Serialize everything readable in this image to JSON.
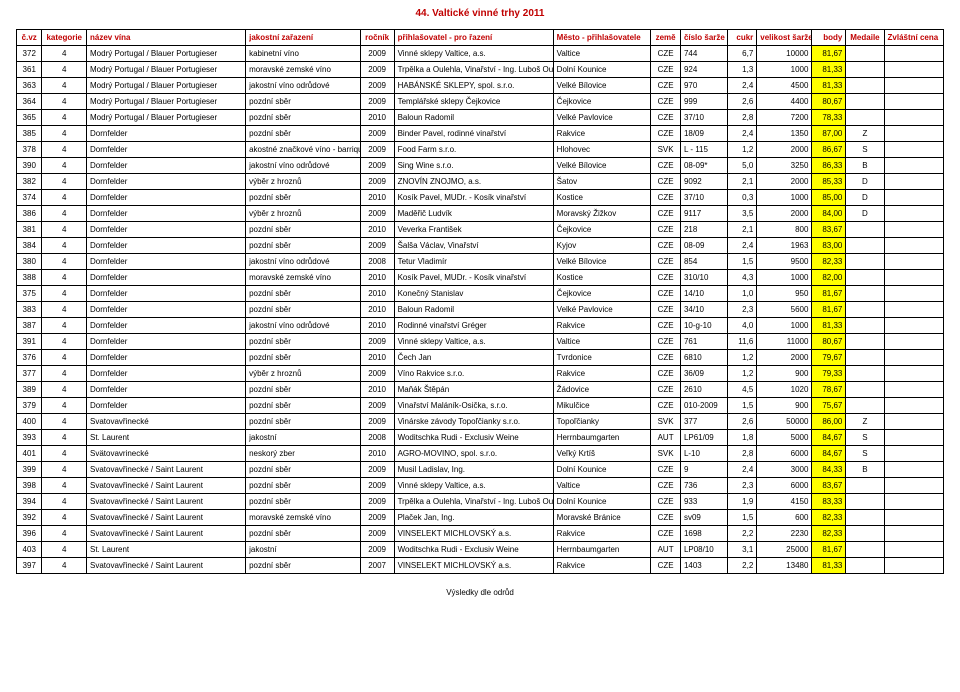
{
  "title": "44. Valtické vinné trhy 2011",
  "footer": "Výsledky dle odrůd",
  "columns": [
    {
      "key": "cvz",
      "label": "č.vz",
      "cls": "col-cvz"
    },
    {
      "key": "kat",
      "label": "kategorie",
      "cls": "col-kat"
    },
    {
      "key": "nazev",
      "label": "název vína",
      "cls": "col-nazev"
    },
    {
      "key": "jak",
      "label": "jakostní zařazení",
      "cls": "col-jak"
    },
    {
      "key": "roc",
      "label": "ročník",
      "cls": "col-roc"
    },
    {
      "key": "prihl",
      "label": "přihlašovatel - pro řazení",
      "cls": "col-prihl"
    },
    {
      "key": "mesto",
      "label": "Město - přihlašovatele",
      "cls": "col-mesto"
    },
    {
      "key": "zeme",
      "label": "země",
      "cls": "col-zeme"
    },
    {
      "key": "sarze",
      "label": "číslo šarže",
      "cls": "col-sarze"
    },
    {
      "key": "cukr",
      "label": "cukr",
      "cls": "col-cukr"
    },
    {
      "key": "vel",
      "label": "velikost šarže",
      "cls": "col-vel"
    },
    {
      "key": "body",
      "label": "body",
      "cls": "col-body"
    },
    {
      "key": "med",
      "label": "Medaile",
      "cls": "col-med"
    },
    {
      "key": "zvl",
      "label": "Zvláštní cena",
      "cls": "col-zvl"
    }
  ],
  "colors": {
    "header_text": "#c00000",
    "border": "#000000",
    "body_hl": "#ffff00",
    "body_normal": "#ffffff"
  },
  "rows": [
    {
      "cvz": "372",
      "kat": "4",
      "nazev": "Modrý Portugal / Blauer Portugieser",
      "jak": "kabinetní víno",
      "roc": "2009",
      "prihl": "Vinné sklepy Valtice, a.s.",
      "mesto": "Valtice",
      "zeme": "CZE",
      "sarze": "744",
      "cukr": "6,7",
      "vel": "10000",
      "body": "81,67",
      "med": "",
      "zvl": ""
    },
    {
      "cvz": "361",
      "kat": "4",
      "nazev": "Modrý Portugal / Blauer Portugieser",
      "jak": "moravské zemské víno",
      "roc": "2009",
      "prihl": "Trpělka a Oulehla, Vinařství - Ing. Luboš Oulehla",
      "mesto": "Dolní Kounice",
      "zeme": "CZE",
      "sarze": "924",
      "cukr": "1,3",
      "vel": "1000",
      "body": "81,33",
      "med": "",
      "zvl": ""
    },
    {
      "cvz": "363",
      "kat": "4",
      "nazev": "Modrý Portugal / Blauer Portugieser",
      "jak": "jakostní víno odrůdové",
      "roc": "2009",
      "prihl": "HABÁNSKÉ SKLEPY, spol. s.r.o.",
      "mesto": "Velké Bílovice",
      "zeme": "CZE",
      "sarze": "970",
      "cukr": "2,4",
      "vel": "4500",
      "body": "81,33",
      "med": "",
      "zvl": ""
    },
    {
      "cvz": "364",
      "kat": "4",
      "nazev": "Modrý Portugal / Blauer Portugieser",
      "jak": "pozdní sběr",
      "roc": "2009",
      "prihl": "Templářské sklepy Čejkovice",
      "mesto": "Čejkovice",
      "zeme": "CZE",
      "sarze": "999",
      "cukr": "2,6",
      "vel": "4400",
      "body": "80,67",
      "med": "",
      "zvl": ""
    },
    {
      "cvz": "365",
      "kat": "4",
      "nazev": "Modrý Portugal / Blauer Portugieser",
      "jak": "pozdní sběr",
      "roc": "2010",
      "prihl": "Baloun Radomil",
      "mesto": "Velké Pavlovice",
      "zeme": "CZE",
      "sarze": "37/10",
      "cukr": "2,8",
      "vel": "7200",
      "body": "78,33",
      "med": "",
      "zvl": ""
    },
    {
      "cvz": "385",
      "kat": "4",
      "nazev": "Dornfelder",
      "jak": "pozdní sběr",
      "roc": "2009",
      "prihl": "Binder Pavel, rodinné vinařství",
      "mesto": "Rakvice",
      "zeme": "CZE",
      "sarze": "18/09",
      "cukr": "2,4",
      "vel": "1350",
      "body": "87,00",
      "med": "Z",
      "zvl": ""
    },
    {
      "cvz": "378",
      "kat": "4",
      "nazev": "Dornfelder",
      "jak": "akostné značkové víno - barrique",
      "roc": "2009",
      "prihl": "Food Farm s.r.o.",
      "mesto": "Hlohovec",
      "zeme": "SVK",
      "sarze": "L - 115",
      "cukr": "1,2",
      "vel": "2000",
      "body": "86,67",
      "med": "S",
      "zvl": ""
    },
    {
      "cvz": "390",
      "kat": "4",
      "nazev": "Dornfelder",
      "jak": "jakostní víno odrůdové",
      "roc": "2009",
      "prihl": "Sing Wine s.r.o.",
      "mesto": "Velké Bílovice",
      "zeme": "CZE",
      "sarze": "08-09*",
      "cukr": "5,0",
      "vel": "3250",
      "body": "86,33",
      "med": "B",
      "zvl": ""
    },
    {
      "cvz": "382",
      "kat": "4",
      "nazev": "Dornfelder",
      "jak": "výběr z hroznů",
      "roc": "2009",
      "prihl": "ZNOVÍN ZNOJMO, a.s.",
      "mesto": "Šatov",
      "zeme": "CZE",
      "sarze": "9092",
      "cukr": "2,1",
      "vel": "2000",
      "body": "85,33",
      "med": "D",
      "zvl": ""
    },
    {
      "cvz": "374",
      "kat": "4",
      "nazev": "Dornfelder",
      "jak": "pozdní sběr",
      "roc": "2010",
      "prihl": "Kosík Pavel, MUDr. - Kosík vinařství",
      "mesto": "Kostice",
      "zeme": "CZE",
      "sarze": "37/10",
      "cukr": "0,3",
      "vel": "1000",
      "body": "85,00",
      "med": "D",
      "zvl": ""
    },
    {
      "cvz": "386",
      "kat": "4",
      "nazev": "Dornfelder",
      "jak": "výběr z hroznů",
      "roc": "2009",
      "prihl": "Maděřič Ludvík",
      "mesto": "Moravský Žižkov",
      "zeme": "CZE",
      "sarze": "9117",
      "cukr": "3,5",
      "vel": "2000",
      "body": "84,00",
      "med": "D",
      "zvl": ""
    },
    {
      "cvz": "381",
      "kat": "4",
      "nazev": "Dornfelder",
      "jak": "pozdní sběr",
      "roc": "2010",
      "prihl": "Veverka František",
      "mesto": "Čejkovice",
      "zeme": "CZE",
      "sarze": "218",
      "cukr": "2,1",
      "vel": "800",
      "body": "83,67",
      "med": "",
      "zvl": ""
    },
    {
      "cvz": "384",
      "kat": "4",
      "nazev": "Dornfelder",
      "jak": "pozdní sběr",
      "roc": "2009",
      "prihl": "Šalša Václav, Vinařství",
      "mesto": "Kyjov",
      "zeme": "CZE",
      "sarze": "08-09",
      "cukr": "2,4",
      "vel": "1963",
      "body": "83,00",
      "med": "",
      "zvl": ""
    },
    {
      "cvz": "380",
      "kat": "4",
      "nazev": "Dornfelder",
      "jak": "jakostní víno odrůdové",
      "roc": "2008",
      "prihl": "Tetur Vladimír",
      "mesto": "Velké Bílovice",
      "zeme": "CZE",
      "sarze": "854",
      "cukr": "1,5",
      "vel": "9500",
      "body": "82,33",
      "med": "",
      "zvl": ""
    },
    {
      "cvz": "388",
      "kat": "4",
      "nazev": "Dornfelder",
      "jak": "moravské zemské víno",
      "roc": "2010",
      "prihl": "Kosík Pavel, MUDr. - Kosík vinařství",
      "mesto": "Kostice",
      "zeme": "CZE",
      "sarze": "310/10",
      "cukr": "4,3",
      "vel": "1000",
      "body": "82,00",
      "med": "",
      "zvl": ""
    },
    {
      "cvz": "375",
      "kat": "4",
      "nazev": "Dornfelder",
      "jak": "pozdní sběr",
      "roc": "2010",
      "prihl": "Konečný Stanislav",
      "mesto": "Čejkovice",
      "zeme": "CZE",
      "sarze": "14/10",
      "cukr": "1,0",
      "vel": "950",
      "body": "81,67",
      "med": "",
      "zvl": ""
    },
    {
      "cvz": "383",
      "kat": "4",
      "nazev": "Dornfelder",
      "jak": "pozdní sběr",
      "roc": "2010",
      "prihl": "Baloun Radomil",
      "mesto": "Velké Pavlovice",
      "zeme": "CZE",
      "sarze": "34/10",
      "cukr": "2,3",
      "vel": "5600",
      "body": "81,67",
      "med": "",
      "zvl": ""
    },
    {
      "cvz": "387",
      "kat": "4",
      "nazev": "Dornfelder",
      "jak": "jakostní víno odrůdové",
      "roc": "2010",
      "prihl": "Rodinné vinařství Gréger",
      "mesto": "Rakvice",
      "zeme": "CZE",
      "sarze": "10-g-10",
      "cukr": "4,0",
      "vel": "1000",
      "body": "81,33",
      "med": "",
      "zvl": ""
    },
    {
      "cvz": "391",
      "kat": "4",
      "nazev": "Dornfelder",
      "jak": "pozdní sběr",
      "roc": "2009",
      "prihl": "Vinné sklepy Valtice, a.s.",
      "mesto": "Valtice",
      "zeme": "CZE",
      "sarze": "761",
      "cukr": "11,6",
      "vel": "11000",
      "body": "80,67",
      "med": "",
      "zvl": ""
    },
    {
      "cvz": "376",
      "kat": "4",
      "nazev": "Dornfelder",
      "jak": "pozdní sběr",
      "roc": "2010",
      "prihl": "Čech Jan",
      "mesto": "Tvrdonice",
      "zeme": "CZE",
      "sarze": "6810",
      "cukr": "1,2",
      "vel": "2000",
      "body": "79,67",
      "med": "",
      "zvl": ""
    },
    {
      "cvz": "377",
      "kat": "4",
      "nazev": "Dornfelder",
      "jak": "výběr z hroznů",
      "roc": "2009",
      "prihl": "Víno Rakvice s.r.o.",
      "mesto": "Rakvice",
      "zeme": "CZE",
      "sarze": "36/09",
      "cukr": "1,2",
      "vel": "900",
      "body": "79,33",
      "med": "",
      "zvl": ""
    },
    {
      "cvz": "389",
      "kat": "4",
      "nazev": "Dornfelder",
      "jak": "pozdní sběr",
      "roc": "2010",
      "prihl": "Maňák Štěpán",
      "mesto": "Žádovice",
      "zeme": "CZE",
      "sarze": "2610",
      "cukr": "4,5",
      "vel": "1020",
      "body": "78,67",
      "med": "",
      "zvl": ""
    },
    {
      "cvz": "379",
      "kat": "4",
      "nazev": "Dornfelder",
      "jak": "pozdní sběr",
      "roc": "2009",
      "prihl": "Vinařství Maláník-Osička, s.r.o.",
      "mesto": "Mikulčice",
      "zeme": "CZE",
      "sarze": "010-2009",
      "cukr": "1,5",
      "vel": "900",
      "body": "75,67",
      "med": "",
      "zvl": ""
    },
    {
      "cvz": "400",
      "kat": "4",
      "nazev": "Svatovavřinecké",
      "jak": "pozdní sběr",
      "roc": "2009",
      "prihl": "Vinárske závody Topoľčianky s.r.o.",
      "mesto": "Topoľčianky",
      "zeme": "SVK",
      "sarze": "377",
      "cukr": "2,6",
      "vel": "50000",
      "body": "86,00",
      "med": "Z",
      "zvl": ""
    },
    {
      "cvz": "393",
      "kat": "4",
      "nazev": "St. Laurent",
      "jak": "jakostní",
      "roc": "2008",
      "prihl": "Woditschka Rudi - Exclusiv Weine",
      "mesto": "Herrnbaumgarten",
      "zeme": "AUT",
      "sarze": "LP61/09",
      "cukr": "1,8",
      "vel": "5000",
      "body": "84,67",
      "med": "S",
      "zvl": ""
    },
    {
      "cvz": "401",
      "kat": "4",
      "nazev": "Svätovavrinecké",
      "jak": "neskorý zber",
      "roc": "2010",
      "prihl": "AGRO-MOVINO, spol. s.r.o.",
      "mesto": "Veľký Krtíš",
      "zeme": "SVK",
      "sarze": "L-10",
      "cukr": "2,8",
      "vel": "6000",
      "body": "84,67",
      "med": "S",
      "zvl": ""
    },
    {
      "cvz": "399",
      "kat": "4",
      "nazev": "Svatovavřinecké / Saint Laurent",
      "jak": "pozdní sběr",
      "roc": "2009",
      "prihl": "Musil Ladislav, Ing.",
      "mesto": "Dolní Kounice",
      "zeme": "CZE",
      "sarze": "9",
      "cukr": "2,4",
      "vel": "3000",
      "body": "84,33",
      "med": "B",
      "zvl": ""
    },
    {
      "cvz": "398",
      "kat": "4",
      "nazev": "Svatovavřinecké / Saint Laurent",
      "jak": "pozdní sběr",
      "roc": "2009",
      "prihl": "Vinné sklepy Valtice, a.s.",
      "mesto": "Valtice",
      "zeme": "CZE",
      "sarze": "736",
      "cukr": "2,3",
      "vel": "6000",
      "body": "83,67",
      "med": "",
      "zvl": ""
    },
    {
      "cvz": "394",
      "kat": "4",
      "nazev": "Svatovavřinecké / Saint Laurent",
      "jak": "pozdní sběr",
      "roc": "2009",
      "prihl": "Trpělka a Oulehla, Vinařství - Ing. Luboš Oulehla",
      "mesto": "Dolní Kounice",
      "zeme": "CZE",
      "sarze": "933",
      "cukr": "1,9",
      "vel": "4150",
      "body": "83,33",
      "med": "",
      "zvl": ""
    },
    {
      "cvz": "392",
      "kat": "4",
      "nazev": "Svatovavřinecké / Saint Laurent",
      "jak": "moravské zemské víno",
      "roc": "2009",
      "prihl": "Plaček Jan, Ing.",
      "mesto": "Moravské Bránice",
      "zeme": "CZE",
      "sarze": "sv09",
      "cukr": "1,5",
      "vel": "600",
      "body": "82,33",
      "med": "",
      "zvl": ""
    },
    {
      "cvz": "396",
      "kat": "4",
      "nazev": "Svatovavřinecké / Saint Laurent",
      "jak": "pozdní sběr",
      "roc": "2009",
      "prihl": "VINSELEKT MICHLOVSKÝ a.s.",
      "mesto": "Rakvice",
      "zeme": "CZE",
      "sarze": "1698",
      "cukr": "2,2",
      "vel": "2230",
      "body": "82,33",
      "med": "",
      "zvl": ""
    },
    {
      "cvz": "403",
      "kat": "4",
      "nazev": "St. Laurent",
      "jak": "jakostní",
      "roc": "2009",
      "prihl": "Woditschka Rudi - Exclusiv Weine",
      "mesto": "Herrnbaumgarten",
      "zeme": "AUT",
      "sarze": "LP08/10",
      "cukr": "3,1",
      "vel": "25000",
      "body": "81,67",
      "med": "",
      "zvl": ""
    },
    {
      "cvz": "397",
      "kat": "4",
      "nazev": "Svatovavřinecké / Saint Laurent",
      "jak": "pozdní sběr",
      "roc": "2007",
      "prihl": "VINSELEKT MICHLOVSKÝ a.s.",
      "mesto": "Rakvice",
      "zeme": "CZE",
      "sarze": "1403",
      "cukr": "2,2",
      "vel": "13480",
      "body": "81,33",
      "med": "",
      "zvl": ""
    }
  ]
}
